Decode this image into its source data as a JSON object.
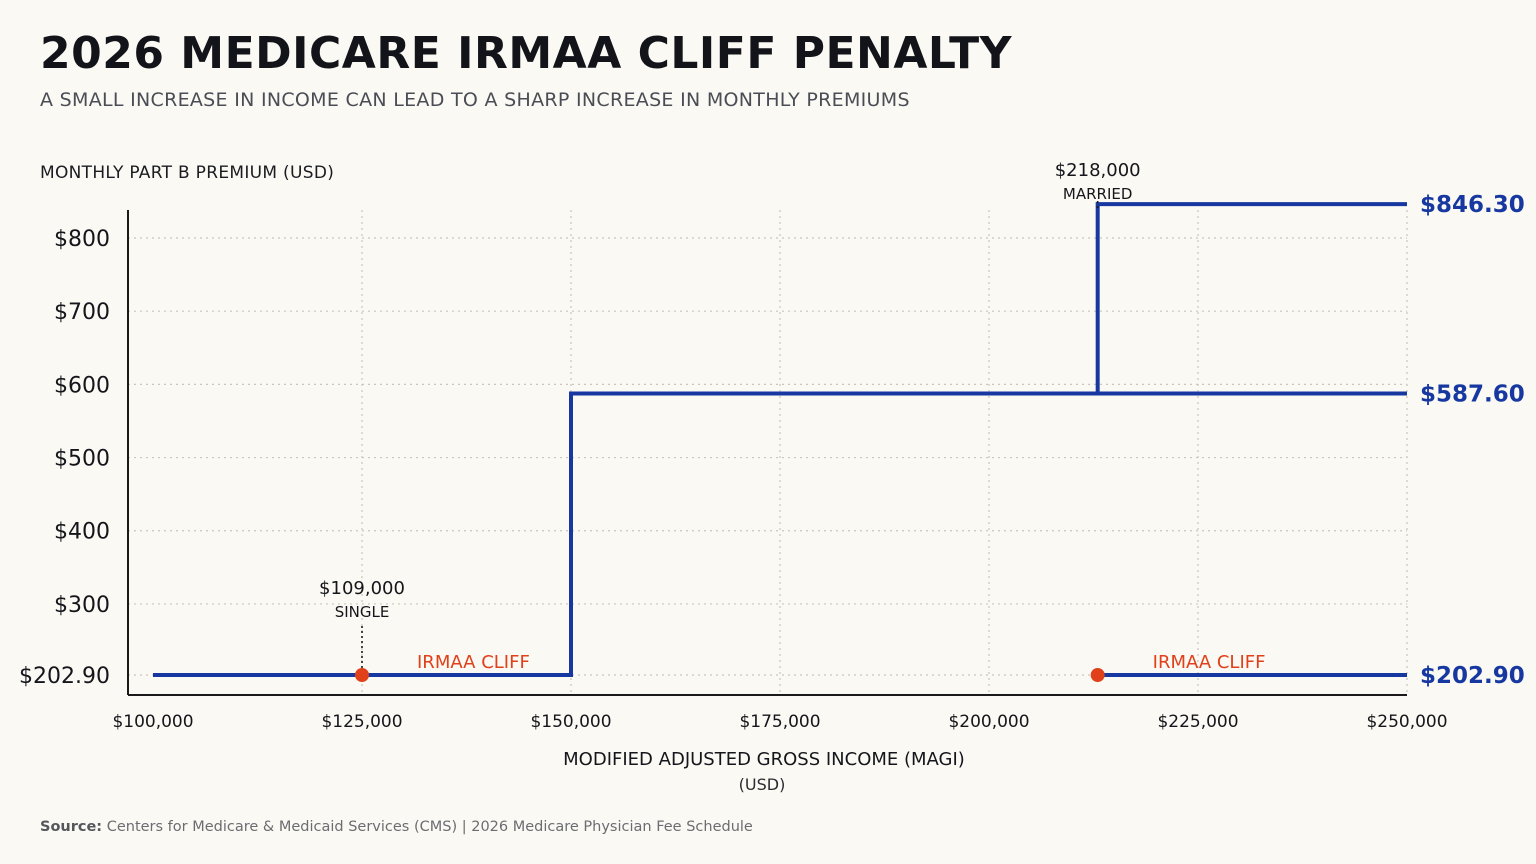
{
  "header": {
    "title": "2026 MEDICARE IRMAA CLIFF PENALTY",
    "subtitle": "A SMALL INCREASE IN INCOME CAN LEAD TO A SHARP INCREASE IN MONTHLY PREMIUMS"
  },
  "source": {
    "label": "Source:",
    "text": "Centers for Medicare & Medicaid Services (CMS)  |  2026 Medicare Physician Fee Schedule"
  },
  "colors": {
    "line": "#1638a0",
    "accent": "#e0401a",
    "axis": "#1a1a1a",
    "grid": "#c9c6bd",
    "text": "#14161c"
  },
  "chart_data": {
    "type": "line",
    "title": "2026 MEDICARE IRMAA CLIFF PENALTY",
    "subtitle": "A SMALL INCREASE IN INCOME CAN LEAD TO A SHARP INCREASE IN MONTHLY PREMIUMS",
    "ylabel": "MONTHLY PART B PREMIUM (USD)",
    "xlabel": "MODIFIED ADJUSTED GROSS INCOME (MAGI)",
    "xlabel_unit": "(USD)",
    "xlim": [
      100000,
      250000
    ],
    "x_ticks": [
      {
        "value": 100000,
        "label": "$100,000"
      },
      {
        "value": 125000,
        "label": "$125,000"
      },
      {
        "value": 150000,
        "label": "$150,000"
      },
      {
        "value": 175000,
        "label": "$175,000"
      },
      {
        "value": 200000,
        "label": "$200,000"
      },
      {
        "value": 225000,
        "label": "$225,000"
      },
      {
        "value": 250000,
        "label": "$250,000"
      }
    ],
    "y_ticks": [
      {
        "value": 202.9,
        "label": "$202.90"
      },
      {
        "value": 300,
        "label": "$300"
      },
      {
        "value": 400,
        "label": "$400"
      },
      {
        "value": 500,
        "label": "$500"
      },
      {
        "value": 600,
        "label": "$600"
      },
      {
        "value": 700,
        "label": "$700"
      },
      {
        "value": 800,
        "label": "$800"
      }
    ],
    "grid": true,
    "series": [
      {
        "points": [
          [
            100000,
            202.9
          ],
          [
            150000,
            202.9
          ],
          [
            150000,
            587.6
          ],
          [
            250000,
            587.6
          ]
        ],
        "end_label": "$587.60"
      },
      {
        "points": [
          [
            213000,
            587.6
          ],
          [
            213000,
            846.3
          ],
          [
            250000,
            846.3
          ]
        ],
        "end_label": "$846.30"
      },
      {
        "points": [
          [
            213000,
            202.9
          ],
          [
            250000,
            202.9
          ]
        ],
        "end_label": "$202.90"
      }
    ],
    "threshold_markers": [
      {
        "x": 125000,
        "y": 202.9,
        "amount": "$109,000",
        "status": "SINGLE",
        "label": "IRMAA CLIFF"
      },
      {
        "x": 213000,
        "y": 202.9,
        "amount": "$218,000",
        "status": "MARRIED",
        "label": "IRMAA CLIFF",
        "marker_top_y": 846.3
      }
    ]
  }
}
